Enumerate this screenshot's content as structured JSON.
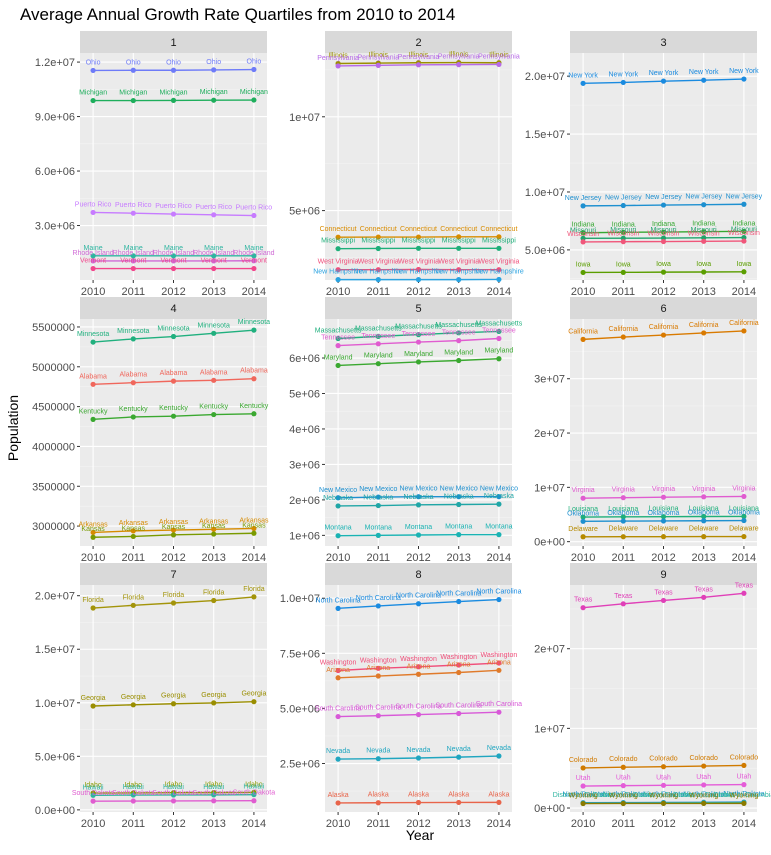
{
  "title": "Average Annual Growth Rate Quartiles from 2010 to 2014",
  "x_axis_label": "Year",
  "y_axis_label": "Population",
  "chart_data": {
    "type": "line",
    "title": "Average Annual Growth Rate Quartiles from 2010 to 2014",
    "xlabel": "Year",
    "ylabel": "Population",
    "x": [
      "2010",
      "2011",
      "2012",
      "2013",
      "2014"
    ],
    "grid": true,
    "legend": "none",
    "panels": [
      {
        "strip": "1",
        "ylim": [
          0,
          12500000
        ],
        "ticks": [
          3000000,
          6000000,
          9000000,
          12000000
        ],
        "tick_labels": [
          "3.0e+06",
          "6.0e+06",
          "9.0e+06",
          "1.2e+07"
        ],
        "series": [
          {
            "name": "Ohio",
            "color": "#6E7BF8",
            "values": [
              11540000,
              11550000,
              11550000,
              11570000,
              11590000
            ]
          },
          {
            "name": "Michigan",
            "color": "#1EAE5C",
            "values": [
              9880000,
              9880000,
              9890000,
              9900000,
              9910000
            ]
          },
          {
            "name": "Puerto Rico",
            "color": "#C77CFF",
            "values": [
              3720000,
              3680000,
              3630000,
              3590000,
              3550000
            ]
          },
          {
            "name": "Maine",
            "color": "#2FB5A0",
            "values": [
              1330000,
              1330000,
              1330000,
              1330000,
              1330000
            ]
          },
          {
            "name": "Rhode Island",
            "color": "#D06AD6",
            "values": [
              1050000,
              1050000,
              1050000,
              1050000,
              1060000
            ]
          },
          {
            "name": "Vermont",
            "color": "#F2458C",
            "values": [
              630000,
              630000,
              630000,
              630000,
              630000
            ]
          }
        ]
      },
      {
        "strip": "2",
        "ylim": [
          1300000,
          13400000
        ],
        "ticks": [
          5000000,
          10000000
        ],
        "tick_labels": [
          "5e+06",
          "1e+07"
        ],
        "series": [
          {
            "name": "Illinois",
            "color": "#9B8F00",
            "values": [
              12840000,
              12860000,
              12880000,
              12890000,
              12880000
            ]
          },
          {
            "name": "Pennsylvania",
            "color": "#B76AE8",
            "values": [
              12710000,
              12740000,
              12770000,
              12780000,
              12790000
            ]
          },
          {
            "name": "Connecticut",
            "color": "#D98C00",
            "values": [
              3580000,
              3590000,
              3590000,
              3600000,
              3600000
            ]
          },
          {
            "name": "Mississippi",
            "color": "#1FAF7A",
            "values": [
              2970000,
              2980000,
              2990000,
              2990000,
              2990000
            ]
          },
          {
            "name": "West Virginia",
            "color": "#F04F7A",
            "values": [
              1850000,
              1850000,
              1860000,
              1850000,
              1850000
            ]
          },
          {
            "name": "New Hampshire",
            "color": "#29A2E0",
            "values": [
              1320000,
              1320000,
              1320000,
              1320000,
              1330000
            ]
          }
        ]
      },
      {
        "strip": "3",
        "ylim": [
          2400000,
          22000000
        ],
        "ticks": [
          5000000,
          10000000,
          15000000,
          20000000
        ],
        "tick_labels": [
          "5.0e+06",
          "1.0e+07",
          "1.5e+07",
          "2.0e+07"
        ],
        "series": [
          {
            "name": "New York",
            "color": "#1A8BE0",
            "values": [
              19380000,
              19460000,
              19570000,
              19650000,
              19750000
            ]
          },
          {
            "name": "New Jersey",
            "color": "#1E90D0",
            "values": [
              8800000,
              8830000,
              8870000,
              8900000,
              8940000
            ]
          },
          {
            "name": "Indiana",
            "color": "#36A832",
            "values": [
              6480000,
              6520000,
              6540000,
              6570000,
              6600000
            ]
          },
          {
            "name": "Missouri",
            "color": "#1FA36A",
            "values": [
              6000000,
              6010000,
              6020000,
              6040000,
              6060000
            ]
          },
          {
            "name": "Wisconsin",
            "color": "#F0567A",
            "values": [
              5690000,
              5710000,
              5720000,
              5740000,
              5760000
            ]
          },
          {
            "name": "Iowa",
            "color": "#5B9E00",
            "values": [
              3050000,
              3060000,
              3080000,
              3090000,
              3110000
            ]
          }
        ]
      },
      {
        "strip": "4",
        "ylim": [
          2750000,
          5600000
        ],
        "ticks": [
          3000000,
          3500000,
          4000000,
          4500000,
          5000000,
          5500000
        ],
        "tick_labels": [
          "3000000",
          "3500000",
          "4000000",
          "4500000",
          "5000000",
          "5500000"
        ],
        "series": [
          {
            "name": "Minnesota",
            "color": "#20B07E",
            "values": [
              5310000,
              5350000,
              5380000,
              5420000,
              5460000
            ]
          },
          {
            "name": "Alabama",
            "color": "#F0675C",
            "values": [
              4780000,
              4800000,
              4820000,
              4830000,
              4850000
            ]
          },
          {
            "name": "Kentucky",
            "color": "#3AA830",
            "values": [
              4340000,
              4370000,
              4380000,
              4400000,
              4410000
            ]
          },
          {
            "name": "Arkansas",
            "color": "#D68B00",
            "values": [
              2920000,
              2940000,
              2950000,
              2960000,
              2970000
            ]
          },
          {
            "name": "Kansas",
            "color": "#7A9A00",
            "values": [
              2860000,
              2870000,
              2890000,
              2900000,
              2910000
            ]
          }
        ]
      },
      {
        "strip": "5",
        "ylim": [
          700000,
          7100000
        ],
        "ticks": [
          1000000,
          2000000,
          3000000,
          4000000,
          5000000,
          6000000
        ],
        "tick_labels": [
          "1e+06",
          "2e+06",
          "3e+06",
          "4e+06",
          "5e+06",
          "6e+06"
        ],
        "series": [
          {
            "name": "Massachusetts",
            "color": "#20B07E",
            "values": [
              6550000,
              6610000,
              6660000,
              6710000,
              6750000
            ]
          },
          {
            "name": "Tennessee",
            "color": "#E05CD0",
            "values": [
              6350000,
              6400000,
              6450000,
              6490000,
              6550000
            ]
          },
          {
            "name": "Maryland",
            "color": "#3AA830",
            "values": [
              5790000,
              5840000,
              5890000,
              5930000,
              5980000
            ]
          },
          {
            "name": "New Mexico",
            "color": "#1E90D0",
            "values": [
              2060000,
              2080000,
              2090000,
              2090000,
              2090000
            ]
          },
          {
            "name": "Nebraska",
            "color": "#20A6A6",
            "values": [
              1830000,
              1840000,
              1860000,
              1870000,
              1880000
            ]
          },
          {
            "name": "Montana",
            "color": "#1AB3B3",
            "values": [
              990000,
              1000000,
              1010000,
              1020000,
              1020000
            ]
          }
        ]
      },
      {
        "strip": "6",
        "ylim": [
          -800000,
          41000000
        ],
        "ticks": [
          0,
          10000000,
          20000000,
          30000000
        ],
        "tick_labels": [
          "0e+00",
          "1e+07",
          "2e+07",
          "3e+07"
        ],
        "series": [
          {
            "name": "California",
            "color": "#D97A00",
            "values": [
              37250000,
              37680000,
              38040000,
              38430000,
              38800000
            ]
          },
          {
            "name": "Virginia",
            "color": "#E05CD0",
            "values": [
              8000000,
              8100000,
              8190000,
              8260000,
              8330000
            ]
          },
          {
            "name": "Louisiana",
            "color": "#1FAF7A",
            "values": [
              4530000,
              4570000,
              4600000,
              4630000,
              4650000
            ]
          },
          {
            "name": "Oklahoma",
            "color": "#1E90D0",
            "values": [
              3750000,
              3790000,
              3810000,
              3850000,
              3880000
            ]
          },
          {
            "name": "Delaware",
            "color": "#B58A00",
            "values": [
              900000,
              910000,
              920000,
              930000,
              940000
            ]
          }
        ]
      },
      {
        "strip": "7",
        "ylim": [
          -200000,
          21000000
        ],
        "ticks": [
          0,
          5000000,
          10000000,
          15000000,
          20000000
        ],
        "tick_labels": [
          "0.0e+00",
          "5.0e+06",
          "1.0e+07",
          "1.5e+07",
          "2.0e+07"
        ],
        "series": [
          {
            "name": "Florida",
            "color": "#A3940A",
            "values": [
              18850000,
              19100000,
              19320000,
              19550000,
              19890000
            ]
          },
          {
            "name": "Georgia",
            "color": "#9A8E00",
            "values": [
              9700000,
              9810000,
              9910000,
              9990000,
              10100000
            ]
          },
          {
            "name": "Idaho",
            "color": "#8A9A00",
            "values": [
              1570000,
              1580000,
              1600000,
              1610000,
              1630000
            ]
          },
          {
            "name": "Hawaii",
            "color": "#2FB5A0",
            "values": [
              1360000,
              1380000,
              1390000,
              1400000,
              1420000
            ]
          },
          {
            "name": "South Dakota",
            "color": "#E05CD0",
            "values": [
              814000,
              824000,
              834000,
              845000,
              853000
            ]
          }
        ]
      },
      {
        "strip": "8",
        "ylim": [
          300000,
          10600000
        ],
        "ticks": [
          2500000,
          5000000,
          7500000,
          10000000
        ],
        "tick_labels": [
          "2.5e+06",
          "5.0e+06",
          "7.5e+06",
          "1.0e+07"
        ],
        "series": [
          {
            "name": "North Carolina",
            "color": "#1A8BE0",
            "values": [
              9540000,
              9650000,
              9750000,
              9850000,
              9940000
            ]
          },
          {
            "name": "Washington",
            "color": "#F04F7A",
            "values": [
              6720000,
              6820000,
              6890000,
              6970000,
              7060000
            ]
          },
          {
            "name": "Arizona",
            "color": "#E07A2A",
            "values": [
              6390000,
              6470000,
              6550000,
              6630000,
              6730000
            ]
          },
          {
            "name": "South Carolina",
            "color": "#D859D8",
            "values": [
              4630000,
              4670000,
              4720000,
              4770000,
              4830000
            ]
          },
          {
            "name": "Nevada",
            "color": "#20A6C0",
            "values": [
              2700000,
              2720000,
              2750000,
              2790000,
              2840000
            ]
          },
          {
            "name": "Alaska",
            "color": "#E8644A",
            "values": [
              710000,
              720000,
              730000,
              735000,
              737000
            ]
          }
        ]
      },
      {
        "strip": "9",
        "ylim": [
          -500000,
          28000000
        ],
        "ticks": [
          0,
          10000000,
          20000000
        ],
        "tick_labels": [
          "0e+00",
          "1e+07",
          "2e+07"
        ],
        "series": [
          {
            "name": "Texas",
            "color": "#E040B8",
            "values": [
              25150000,
              25640000,
              26060000,
              26450000,
              26960000
            ]
          },
          {
            "name": "Colorado",
            "color": "#D07A00",
            "values": [
              5030000,
              5120000,
              5190000,
              5270000,
              5350000
            ]
          },
          {
            "name": "Utah",
            "color": "#E45CD8",
            "values": [
              2760000,
              2810000,
              2850000,
              2900000,
              2940000
            ]
          },
          {
            "name": "North Dakota",
            "color": "#1E90D0",
            "values": [
              670000,
              680000,
              700000,
              720000,
              740000
            ]
          },
          {
            "name": "District of Columbia",
            "color": "#2FB5A0",
            "values": [
              600000,
              620000,
              630000,
              650000,
              660000
            ]
          },
          {
            "name": "Wyoming",
            "color": "#8A7A00",
            "values": [
              560000,
              570000,
              580000,
              580000,
              584000
            ]
          }
        ]
      }
    ]
  }
}
